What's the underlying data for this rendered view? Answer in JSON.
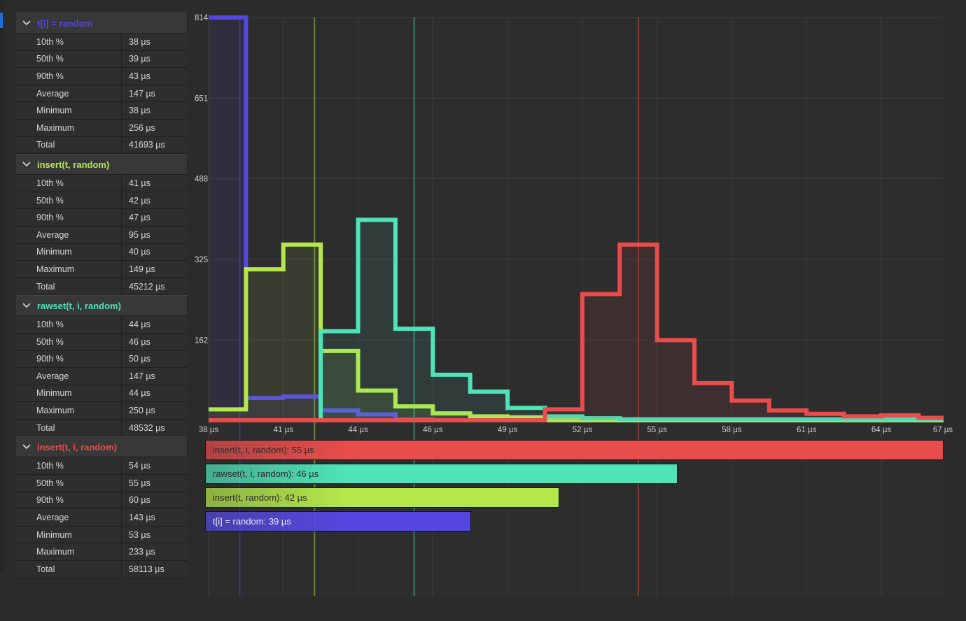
{
  "stats_groups": [
    {
      "name": "t[i] = random",
      "color": "#5448e0",
      "rows": [
        {
          "label": "10th %",
          "value": "38 µs"
        },
        {
          "label": "50th %",
          "value": "39 µs"
        },
        {
          "label": "90th %",
          "value": "43 µs"
        },
        {
          "label": "Average",
          "value": "147 µs"
        },
        {
          "label": "Minimum",
          "value": "38 µs"
        },
        {
          "label": "Maximum",
          "value": "256 µs"
        },
        {
          "label": "Total",
          "value": "41693 µs"
        }
      ]
    },
    {
      "name": "insert(t, random)",
      "color": "#b4e84a",
      "rows": [
        {
          "label": "10th %",
          "value": "41 µs"
        },
        {
          "label": "50th %",
          "value": "42 µs"
        },
        {
          "label": "90th %",
          "value": "47 µs"
        },
        {
          "label": "Average",
          "value": "95 µs"
        },
        {
          "label": "Minimum",
          "value": "40 µs"
        },
        {
          "label": "Maximum",
          "value": "149 µs"
        },
        {
          "label": "Total",
          "value": "45212 µs"
        }
      ]
    },
    {
      "name": "rawset(t, i, random)",
      "color": "#4fe3b8",
      "rows": [
        {
          "label": "10th %",
          "value": "44 µs"
        },
        {
          "label": "50th %",
          "value": "46 µs"
        },
        {
          "label": "90th %",
          "value": "50 µs"
        },
        {
          "label": "Average",
          "value": "147 µs"
        },
        {
          "label": "Minimum",
          "value": "44 µs"
        },
        {
          "label": "Maximum",
          "value": "250 µs"
        },
        {
          "label": "Total",
          "value": "48532 µs"
        }
      ]
    },
    {
      "name": "insert(t, i, random)",
      "color": "#e84c4c",
      "rows": [
        {
          "label": "10th %",
          "value": "54 µs"
        },
        {
          "label": "50th %",
          "value": "55 µs"
        },
        {
          "label": "90th %",
          "value": "60 µs"
        },
        {
          "label": "Average",
          "value": "143 µs"
        },
        {
          "label": "Minimum",
          "value": "53 µs"
        },
        {
          "label": "Maximum",
          "value": "233 µs"
        },
        {
          "label": "Total",
          "value": "58113 µs"
        }
      ]
    }
  ],
  "chart_data": [
    {
      "type": "line",
      "step": true,
      "xlim": [
        38,
        67.5
      ],
      "ylim": [
        0,
        814
      ],
      "x_ticks": [
        38,
        41,
        44,
        47,
        50,
        53,
        56,
        59,
        62,
        65,
        68
      ],
      "x_tick_labels": [
        "38 µs",
        "41 µs",
        "44 µs",
        "46 µs",
        "49 µs",
        "52 µs",
        "55 µs",
        "58 µs",
        "61 µs",
        "64 µs",
        "67 µs"
      ],
      "y_ticks": [
        162,
        325,
        488,
        651,
        814
      ],
      "y_tick_labels": [
        "162",
        "325",
        "488",
        "651",
        "814"
      ],
      "grid": true,
      "bin_edges": [
        38,
        39.5,
        41,
        42.5,
        44,
        45.5,
        47,
        48.5,
        50,
        51.5,
        53,
        54.5,
        56,
        57.5,
        59,
        60.5,
        62,
        63.5,
        65,
        66.5,
        67.5
      ],
      "series": [
        {
          "name": "t[i] = random",
          "color": "#5448e0",
          "median": 39,
          "counts": [
            814,
            45,
            48,
            20,
            12,
            2,
            0,
            0,
            0,
            0,
            0,
            0,
            0,
            0,
            0,
            0,
            0,
            0,
            0,
            0
          ]
        },
        {
          "name": "insert(t, random)",
          "color": "#b4e84a",
          "median": 42,
          "counts": [
            22,
            305,
            355,
            140,
            60,
            28,
            14,
            8,
            6,
            0,
            0,
            0,
            0,
            0,
            0,
            0,
            0,
            0,
            0,
            0
          ]
        },
        {
          "name": "rawset(t, i, random)",
          "color": "#4fe3b8",
          "median": 46,
          "counts": [
            0,
            0,
            0,
            180,
            405,
            185,
            92,
            58,
            25,
            8,
            4,
            2,
            2,
            2,
            2,
            2,
            2,
            2,
            2,
            2
          ]
        },
        {
          "name": "insert(t, i, random)",
          "color": "#e84c4c",
          "median": 55,
          "counts": [
            0,
            0,
            0,
            0,
            0,
            0,
            0,
            0,
            0,
            22,
            255,
            355,
            162,
            75,
            40,
            20,
            13,
            8,
            10,
            5
          ]
        }
      ]
    },
    {
      "type": "bar",
      "orientation": "horizontal",
      "categories": [
        "insert(t, i, random)",
        "rawset(t, i, random)",
        "insert(t, random)",
        "t[i] = random"
      ],
      "values": [
        55,
        46,
        42,
        39
      ],
      "colors": [
        "#e84c4c",
        "#4fe3b8",
        "#b4e84a",
        "#5448e0"
      ],
      "labels": [
        "insert(t, i, random): 55 µs",
        "rawset(t, i, random): 46 µs",
        "insert(t, random): 42 µs",
        "t[i] = random: 39 µs"
      ]
    }
  ]
}
